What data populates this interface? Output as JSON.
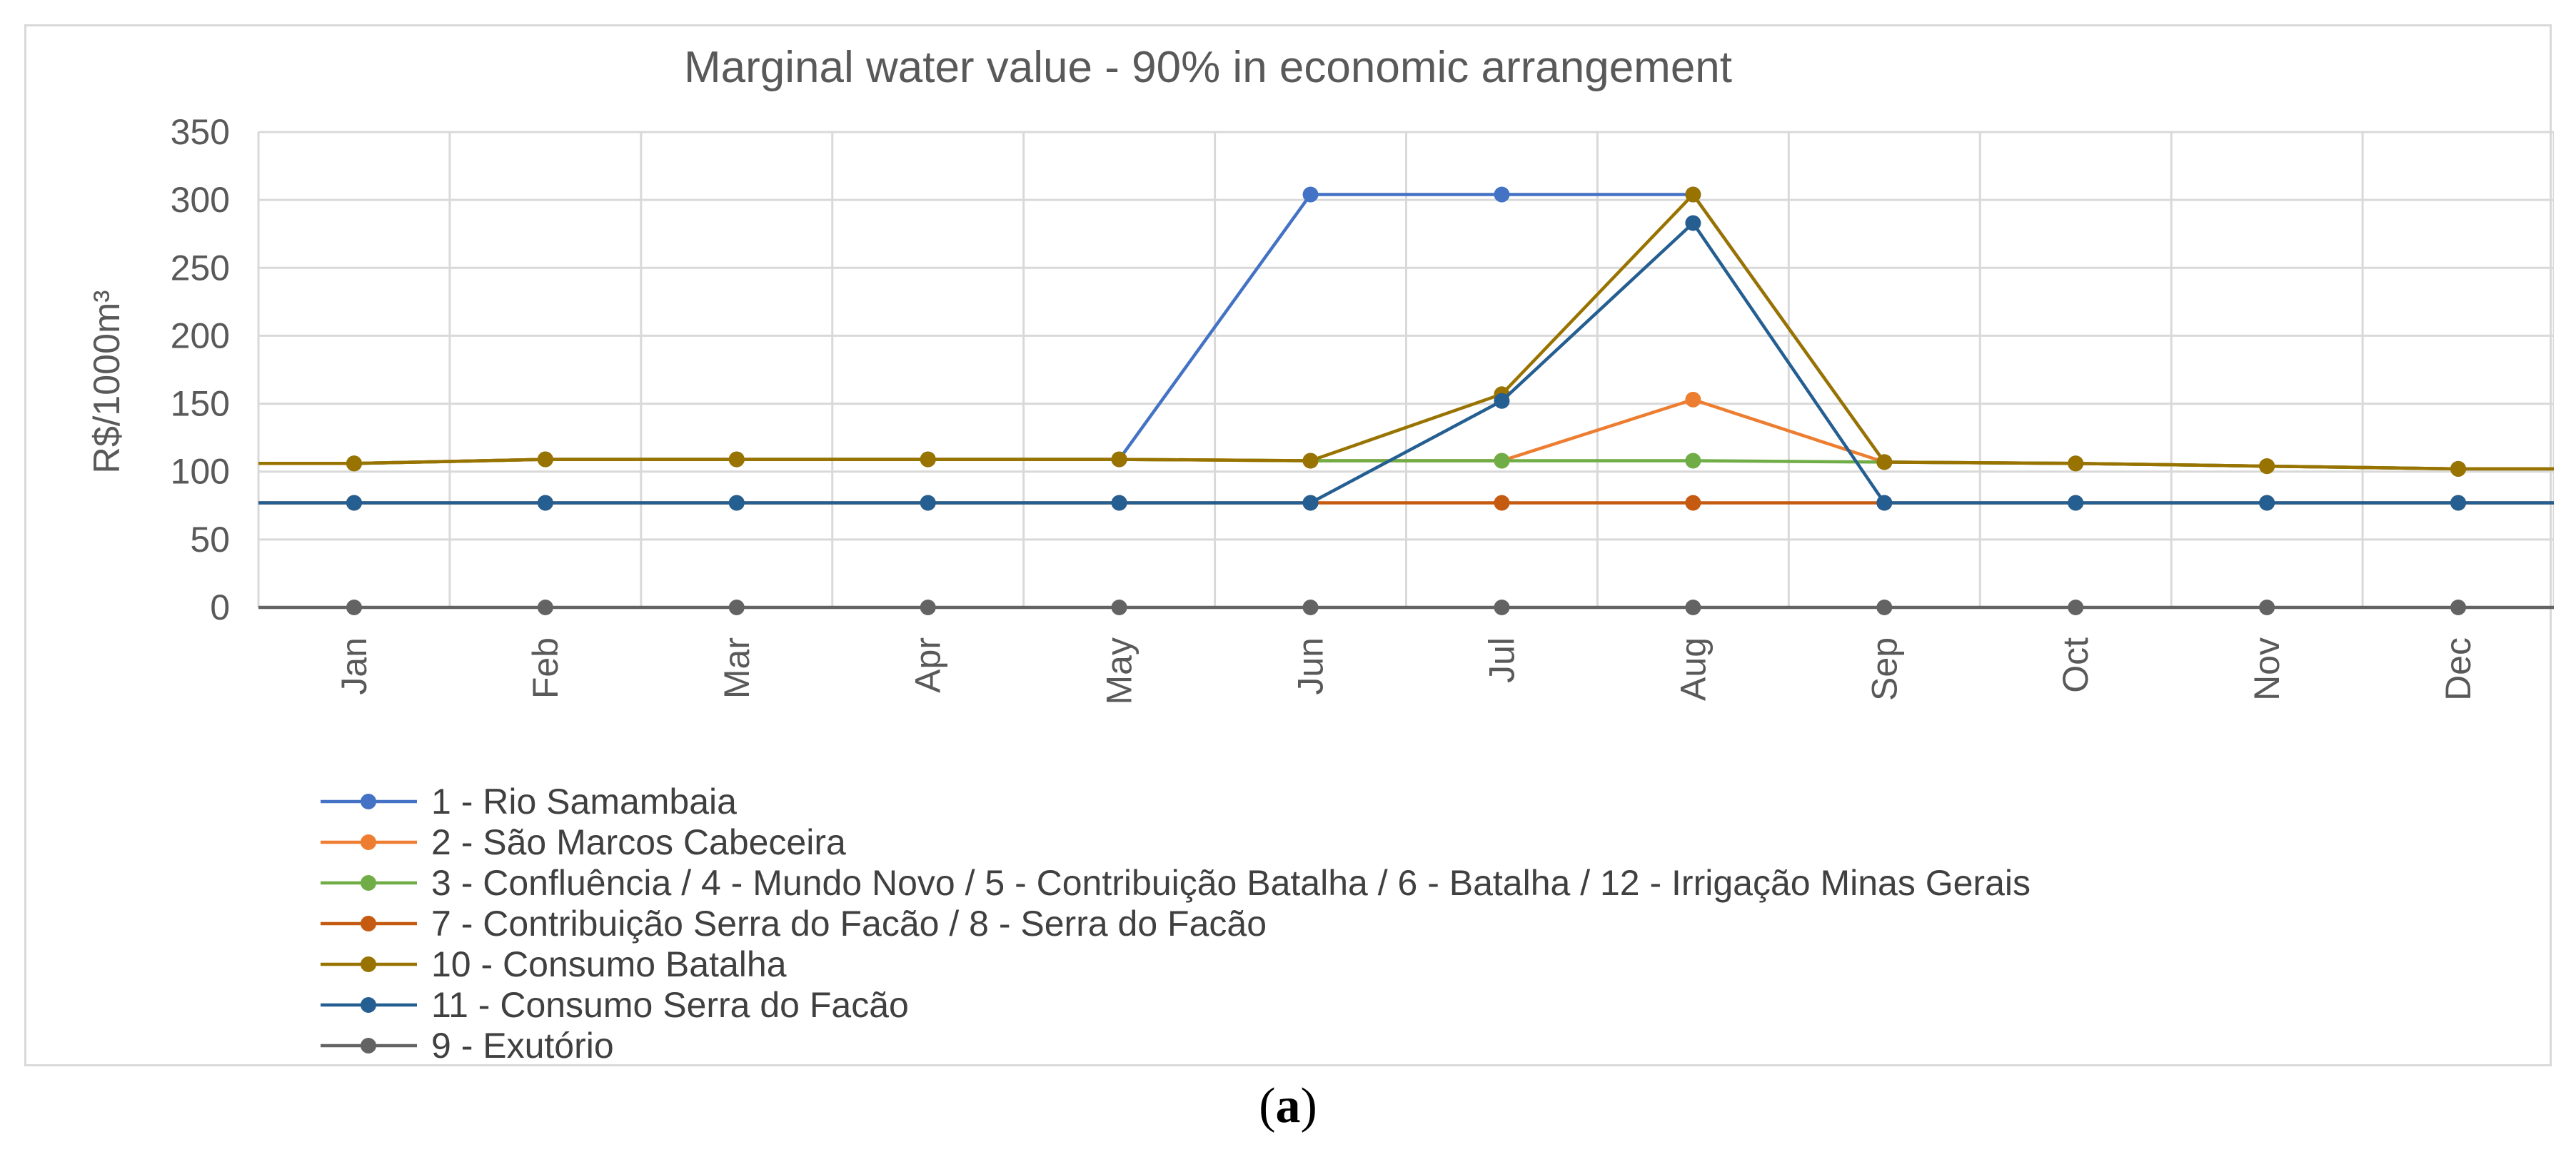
{
  "caption": {
    "open": "(",
    "letter": "a",
    "close": ")"
  },
  "chart_data": {
    "type": "line",
    "title": "Marginal water value - 90% in economic arrangement",
    "xlabel": "",
    "ylabel": "R$/1000m³",
    "ylim": [
      0,
      350
    ],
    "yticks": [
      0,
      50,
      100,
      150,
      200,
      250,
      300,
      350
    ],
    "categories": [
      "Jan",
      "Feb",
      "Mar",
      "Apr",
      "May",
      "Jun",
      "Jul",
      "Aug",
      "Sep",
      "Oct",
      "Nov",
      "Dec"
    ],
    "grid": true,
    "legend_position": "bottom-left",
    "series": [
      {
        "name": "1 - Rio Samambaia",
        "color": "#4472c4",
        "values": [
          106,
          109,
          109,
          109,
          109,
          304,
          304,
          304,
          107,
          106,
          104,
          102
        ]
      },
      {
        "name": "2 - São Marcos Cabeceira",
        "color": "#ed7d31",
        "values": [
          106,
          109,
          109,
          109,
          109,
          108,
          108,
          153,
          107,
          106,
          104,
          102
        ]
      },
      {
        "name": "3 - Confluência / 4 - Mundo Novo / 5 - Contribuição Batalha / 6 - Batalha / 12 - Irrigação Minas Gerais",
        "color": "#70ad47",
        "values": [
          106,
          109,
          109,
          109,
          109,
          108,
          108,
          108,
          107,
          106,
          104,
          102
        ]
      },
      {
        "name": "7 - Contribuição Serra do Facão / 8 - Serra do Facão",
        "color": "#c55a11",
        "values": [
          77,
          77,
          77,
          77,
          77,
          77,
          77,
          77,
          77,
          77,
          77,
          77
        ]
      },
      {
        "name": "10 - Consumo Batalha",
        "color": "#997300",
        "values": [
          106,
          109,
          109,
          109,
          109,
          108,
          157,
          304,
          107,
          106,
          104,
          102
        ]
      },
      {
        "name": "11 - Consumo Serra do Facão",
        "color": "#255e91",
        "values": [
          77,
          77,
          77,
          77,
          77,
          77,
          152,
          283,
          77,
          77,
          77,
          77
        ]
      },
      {
        "name": "9 - Exutório",
        "color": "#636363",
        "values": [
          0,
          0,
          0,
          0,
          0,
          0,
          0,
          0,
          0,
          0,
          0,
          0
        ]
      }
    ]
  }
}
